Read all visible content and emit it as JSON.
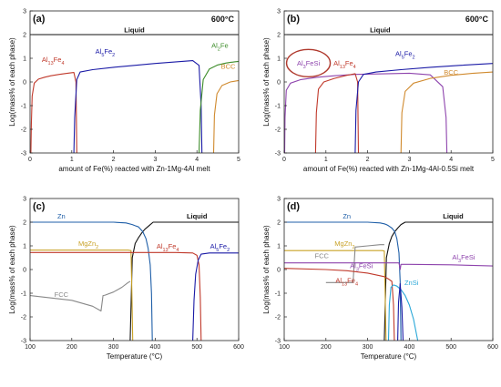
{
  "chart_data": [
    {
      "type": "line",
      "panel": "(a)",
      "annotation": "600°C",
      "xlabel": "amount of Fe(%) reacted with Zn-1Mg-4Al melt",
      "ylabel": "Log(mass% of each phase)",
      "xlim": [
        0,
        5
      ],
      "ylim": [
        -3,
        3
      ],
      "xticks": [
        0,
        1,
        2,
        3,
        4,
        5
      ],
      "yticks": [
        -3,
        -2,
        -1,
        0,
        1,
        2,
        3
      ],
      "series": [
        {
          "name": "Liquid",
          "color": "#111111",
          "labelText": "Liquid",
          "label": {
            "x": 2.5,
            "y": 2.1
          },
          "x": [
            0,
            5
          ],
          "y": [
            2,
            2
          ]
        },
        {
          "name": "Al13Fe4",
          "color": "#c0392b",
          "labelText": "Al13Fe4",
          "label": {
            "x": 0.55,
            "y": 0.85
          },
          "x": [
            0.02,
            0.03,
            0.05,
            0.1,
            0.2,
            0.35,
            0.5,
            0.7,
            0.9,
            1.05,
            1.1,
            1.12
          ],
          "y": [
            -3,
            -1.8,
            -0.6,
            -0.05,
            0.12,
            0.2,
            0.26,
            0.32,
            0.37,
            0.4,
            0.0,
            -3
          ]
        },
        {
          "name": "Al5Fe2",
          "color": "#1a1aa6",
          "labelText": "Al5Fe2",
          "label": {
            "x": 1.8,
            "y": 1.2
          },
          "x": [
            1.05,
            1.07,
            1.12,
            1.2,
            1.5,
            2,
            2.5,
            3,
            3.5,
            3.9,
            4.05,
            4.1,
            4.12
          ],
          "y": [
            -3,
            -1.5,
            0.1,
            0.42,
            0.52,
            0.62,
            0.7,
            0.78,
            0.85,
            0.9,
            0.7,
            -1,
            -3
          ]
        },
        {
          "name": "Al2Fe",
          "color": "#3d8c2a",
          "labelText": "Al2Fe",
          "label": {
            "x": 4.55,
            "y": 1.45
          },
          "x": [
            4.05,
            4.08,
            4.15,
            4.3,
            4.5,
            4.7,
            4.9,
            5.0
          ],
          "y": [
            -3,
            -1.2,
            0.1,
            0.55,
            0.72,
            0.8,
            0.85,
            0.87
          ]
        },
        {
          "name": "BCC",
          "color": "#d08a2e",
          "labelText": "BCC",
          "label": {
            "x": 4.75,
            "y": 0.55
          },
          "x": [
            4.4,
            4.42,
            4.48,
            4.6,
            4.8,
            5.0
          ],
          "y": [
            -3,
            -1.4,
            -0.5,
            -0.15,
            0.0,
            0.06
          ]
        }
      ]
    },
    {
      "type": "line",
      "panel": "(b)",
      "annotation": "600°C",
      "xlabel": "amount of Fe(%) reacted with Zn-1Mg-4Al-0.5Si melt",
      "ylabel": "Log(mass% of each phase)",
      "xlim": [
        0,
        5
      ],
      "ylim": [
        -3,
        3
      ],
      "xticks": [
        0,
        1,
        2,
        3,
        4,
        5
      ],
      "yticks": [
        -3,
        -2,
        -1,
        0,
        1,
        2,
        3
      ],
      "series": [
        {
          "name": "Liquid",
          "color": "#111111",
          "labelText": "Liquid",
          "label": {
            "x": 2.3,
            "y": 2.1
          },
          "x": [
            0,
            5
          ],
          "y": [
            2,
            2
          ]
        },
        {
          "name": "Al3FeSi",
          "color": "#8e44ad",
          "labelText": "Al3FeSi",
          "label": {
            "x": 0.58,
            "y": 0.7
          },
          "x": [
            0.01,
            0.02,
            0.05,
            0.15,
            0.4,
            0.8,
            1.2,
            1.7,
            2.5,
            3.0,
            3.5,
            3.8,
            3.88,
            3.9
          ],
          "y": [
            -3,
            -1.5,
            -0.35,
            -0.05,
            0.1,
            0.2,
            0.26,
            0.32,
            0.35,
            0.37,
            0.3,
            -0.2,
            -1.5,
            -3
          ]
        },
        {
          "name": "Al13Fe4",
          "color": "#c0392b",
          "labelText": "Al13Fe4",
          "label": {
            "x": 1.45,
            "y": 0.7
          },
          "x": [
            0.75,
            0.77,
            0.82,
            0.95,
            1.2,
            1.5,
            1.7,
            1.76,
            1.78
          ],
          "y": [
            -3,
            -1.3,
            -0.3,
            0.0,
            0.15,
            0.28,
            0.35,
            0.0,
            -3
          ]
        },
        {
          "name": "Al5Fe2",
          "color": "#1a1aa6",
          "labelText": "Al5Fe2",
          "label": {
            "x": 2.9,
            "y": 1.1
          },
          "x": [
            1.7,
            1.72,
            1.78,
            1.9,
            2.2,
            2.8,
            3.5,
            4.2,
            5.0
          ],
          "y": [
            -3,
            -1.2,
            0.0,
            0.32,
            0.42,
            0.52,
            0.62,
            0.7,
            0.78
          ]
        },
        {
          "name": "BCC",
          "color": "#d08a2e",
          "labelText": "BCC",
          "label": {
            "x": 4.0,
            "y": 0.3
          },
          "x": [
            2.8,
            2.82,
            2.9,
            3.1,
            3.5,
            4.0,
            4.5,
            5.0
          ],
          "y": [
            -3,
            -1.3,
            -0.4,
            -0.05,
            0.15,
            0.28,
            0.36,
            0.42
          ]
        }
      ],
      "highlight": {
        "label": "Al3FeSi",
        "shape": "ellipse",
        "color": "#b03a2e"
      }
    },
    {
      "type": "line",
      "panel": "(c)",
      "xlabel": "Temperature (°C)",
      "ylabel": "Log(mass% of each phase)",
      "xlim": [
        100,
        600
      ],
      "ylim": [
        -3,
        3
      ],
      "xticks": [
        100,
        200,
        300,
        400,
        500,
        600
      ],
      "yticks": [
        -3,
        -2,
        -1,
        0,
        1,
        2,
        3
      ],
      "series": [
        {
          "name": "Liquid",
          "color": "#111111",
          "labelText": "Liquid",
          "label": {
            "x": 500,
            "y": 2.15
          },
          "x": [
            340,
            345,
            352,
            360,
            368,
            375,
            385,
            395,
            600
          ],
          "y": [
            -3,
            0.5,
            1.1,
            1.35,
            1.55,
            1.7,
            1.85,
            2.0,
            2.0
          ]
        },
        {
          "name": "Zn",
          "color": "#1f5fa8",
          "labelText": "Zn",
          "label": {
            "x": 175,
            "y": 2.15
          },
          "x": [
            100,
            200,
            300,
            330,
            345,
            352,
            360,
            370,
            378,
            383,
            388,
            391,
            393
          ],
          "y": [
            2.0,
            2.0,
            2.0,
            1.97,
            1.9,
            1.85,
            1.8,
            1.6,
            1.3,
            0.9,
            0.2,
            -1.0,
            -3
          ]
        },
        {
          "name": "MgZn2",
          "color": "#c9a227",
          "labelText": "MgZn2",
          "label": {
            "x": 240,
            "y": 1.0
          },
          "x": [
            100,
            200,
            300,
            335,
            342,
            344,
            346
          ],
          "y": [
            0.82,
            0.82,
            0.82,
            0.82,
            0.8,
            -1.0,
            -3
          ]
        },
        {
          "name": "Al13Fe4",
          "color": "#c0392b",
          "labelText": "Al13Fe4",
          "label": {
            "x": 430,
            "y": 0.88
          },
          "x": [
            100,
            300,
            340,
            400,
            450,
            490,
            500,
            505,
            508,
            510
          ],
          "y": [
            0.72,
            0.72,
            0.72,
            0.72,
            0.72,
            0.7,
            0.6,
            0.2,
            -1.2,
            -3
          ]
        },
        {
          "name": "Al5Fe2",
          "color": "#1a1aa6",
          "labelText": "Al5Fe2",
          "label": {
            "x": 555,
            "y": 0.88
          },
          "x": [
            490,
            493,
            497,
            503,
            510,
            530,
            600
          ],
          "y": [
            -3,
            -1.3,
            -0.2,
            0.4,
            0.65,
            0.7,
            0.7
          ]
        },
        {
          "name": "FCC",
          "color": "#888888",
          "labelText": "FCC",
          "label": {
            "x": 175,
            "y": -1.15
          },
          "x": [
            100,
            150,
            200,
            250,
            270,
            275,
            280,
            300,
            320,
            335,
            340
          ],
          "y": [
            -1.1,
            -1.2,
            -1.3,
            -1.55,
            -1.75,
            -1.1,
            -1.08,
            -0.95,
            -0.75,
            -0.55,
            -0.5
          ]
        }
      ]
    },
    {
      "type": "line",
      "panel": "(d)",
      "xlabel": "Temperature (°C)",
      "ylabel": "Log(mass% of each phase)",
      "xlim": [
        100,
        600
      ],
      "ylim": [
        -3,
        3
      ],
      "xticks": [
        100,
        200,
        300,
        400,
        500,
        600
      ],
      "yticks": [
        -3,
        -2,
        -1,
        0,
        1,
        2,
        3
      ],
      "series": [
        {
          "name": "Liquid",
          "color": "#111111",
          "labelText": "Liquid",
          "label": {
            "x": 505,
            "y": 2.15
          },
          "x": [
            340,
            345,
            352,
            358,
            365,
            372,
            380,
            390,
            600
          ],
          "y": [
            -3,
            0.5,
            1.1,
            1.4,
            1.6,
            1.75,
            1.9,
            2.0,
            2.0
          ]
        },
        {
          "name": "Zn",
          "color": "#1f5fa8",
          "labelText": "Zn",
          "label": {
            "x": 250,
            "y": 2.15
          },
          "x": [
            100,
            200,
            300,
            330,
            340,
            345,
            350,
            358,
            365,
            370,
            375,
            378,
            380
          ],
          "y": [
            2.0,
            2.0,
            2.0,
            1.97,
            1.93,
            1.9,
            1.85,
            1.75,
            1.6,
            1.3,
            0.7,
            -0.5,
            -3
          ]
        },
        {
          "name": "MgZn2",
          "color": "#c9a227",
          "labelText": "MgZn2",
          "label": {
            "x": 245,
            "y": 1.0
          },
          "x": [
            100,
            200,
            300,
            335,
            340,
            342,
            344
          ],
          "y": [
            0.8,
            0.8,
            0.8,
            0.8,
            0.78,
            -1.0,
            -3
          ]
        },
        {
          "name": "FCC",
          "color": "#888888",
          "labelText": "FCC",
          "label": {
            "x": 190,
            "y": 0.48
          },
          "x": [
            200,
            240,
            265,
            270,
            300,
            330,
            340
          ],
          "y": [
            -0.55,
            -0.55,
            -0.55,
            0.95,
            1.0,
            1.05,
            1.05
          ]
        },
        {
          "name": "Al3FeSi",
          "color": "#8e44ad",
          "labelText": "Al3FeSi",
          "label": {
            "x": 285,
            "y": 0.05
          },
          "x": [
            100,
            200,
            300,
            340,
            360,
            375,
            378,
            380,
            400,
            500,
            600
          ],
          "y": [
            0.28,
            0.28,
            0.28,
            0.28,
            0.28,
            0.28,
            0.0,
            0.22,
            0.22,
            0.2,
            0.15
          ]
        },
        {
          "name": "Al3FeSi",
          "color": "#8e44ad",
          "labelText": "Al3FeSi",
          "label": {
            "x": 530,
            "y": 0.42
          },
          "x": [
            600
          ],
          "y": [
            0.15
          ]
        },
        {
          "name": "Al13Fe4",
          "color": "#c0392b",
          "labelText": "Al13Fe4",
          "label": {
            "x": 250,
            "y": -0.55
          },
          "x": [
            100,
            200,
            250,
            300,
            340,
            350,
            358,
            362,
            364
          ],
          "y": [
            0.05,
            0.0,
            -0.05,
            -0.15,
            -0.3,
            -0.4,
            -0.5,
            -1.5,
            -3
          ]
        },
        {
          "name": "ZnSi",
          "color": "#2aa8d8",
          "labelText": "ZnSi",
          "label": {
            "x": 405,
            "y": -0.65
          },
          "x": [
            350,
            352,
            356,
            362,
            370,
            380,
            390,
            400,
            410,
            420
          ],
          "y": [
            -3,
            -1.5,
            -0.75,
            -0.65,
            -0.7,
            -0.85,
            -1.1,
            -1.5,
            -2.1,
            -3
          ]
        },
        {
          "name": "Al5Fe2",
          "color": "#1a1aa6",
          "labelText": "",
          "label": null,
          "x": [
            372,
            374,
            378,
            382,
            385
          ],
          "y": [
            -3,
            -1.4,
            -0.6,
            -1.6,
            -3
          ]
        }
      ]
    }
  ]
}
